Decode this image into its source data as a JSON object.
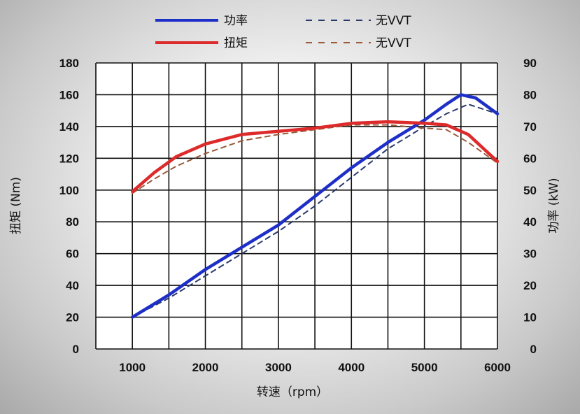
{
  "chart_data": {
    "type": "line",
    "title": "",
    "xlabel": "转速（rpm）",
    "ylabel_left": "扭矩 (Nm)",
    "ylabel_right": "功率 (kW)",
    "x_ticks": [
      "1000",
      "2000",
      "3000",
      "4000",
      "5000",
      "6000"
    ],
    "x_range": [
      500,
      6000
    ],
    "yleft_ticks": [
      "0",
      "20",
      "40",
      "60",
      "80",
      "100",
      "120",
      "140",
      "160",
      "180"
    ],
    "yleft_range": [
      0,
      180
    ],
    "yright_ticks": [
      "0",
      "10",
      "20",
      "30",
      "40",
      "50",
      "60",
      "70",
      "80",
      "90"
    ],
    "yright_range": [
      0,
      90
    ],
    "grid": true,
    "legend_position": "top-center",
    "legend": [
      {
        "label": "功率",
        "color": "#1e2fc8",
        "style": "solid"
      },
      {
        "label": "无VVT",
        "color": "#2a3a6a",
        "style": "dashed"
      },
      {
        "label": "扭矩",
        "color": "#dd2a2a",
        "style": "solid"
      },
      {
        "label": "无VVT",
        "color": "#9a5a3a",
        "style": "dashed"
      }
    ],
    "series": [
      {
        "name": "功率",
        "axis": "right",
        "color": "#1e2fc8",
        "dash": false,
        "x": [
          1000,
          1500,
          2000,
          2500,
          3000,
          3500,
          4000,
          4500,
          5000,
          5300,
          5500,
          5700,
          6000
        ],
        "y": [
          10,
          17,
          25,
          32,
          39,
          48,
          57,
          65,
          72,
          77,
          80,
          79,
          74
        ]
      },
      {
        "name": "无VVT",
        "axis": "right",
        "color": "#2a3a6a",
        "dash": true,
        "x": [
          1000,
          1500,
          2000,
          2500,
          3000,
          3500,
          4000,
          4500,
          5000,
          5300,
          5600,
          6000
        ],
        "y": [
          10,
          16,
          23,
          30,
          37,
          45,
          54,
          63,
          70,
          74,
          77,
          74
        ]
      },
      {
        "name": "扭矩",
        "axis": "left",
        "color": "#dd2a2a",
        "dash": false,
        "x": [
          1000,
          1300,
          1600,
          2000,
          2500,
          3000,
          3500,
          4000,
          4500,
          5000,
          5300,
          5600,
          6000
        ],
        "y": [
          99,
          111,
          121,
          129,
          135,
          137,
          139,
          142,
          143,
          142,
          141,
          135,
          118
        ]
      },
      {
        "name": "无VVT",
        "axis": "left",
        "color": "#9a5a3a",
        "dash": true,
        "x": [
          1000,
          1300,
          1600,
          2000,
          2500,
          3000,
          3500,
          4000,
          4500,
          5000,
          5300,
          5600,
          6000
        ],
        "y": [
          98,
          107,
          115,
          123,
          131,
          135,
          138,
          141,
          141,
          139,
          138,
          130,
          117
        ]
      }
    ]
  }
}
